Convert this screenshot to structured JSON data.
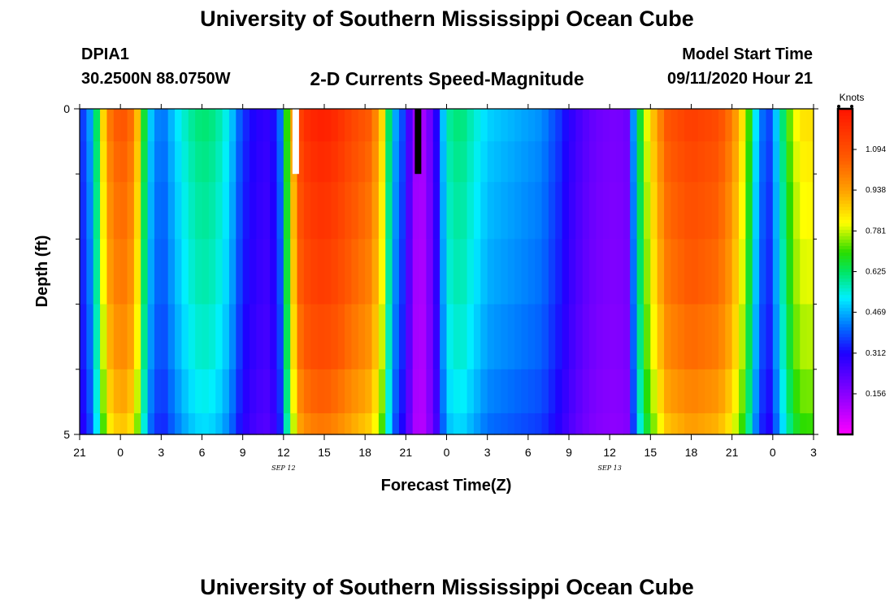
{
  "page": {
    "title_top": "University of Southern Mississippi Ocean Cube",
    "title_bottom": "University of Southern Mississippi Ocean Cube",
    "station_id": "DPIA1",
    "station_coords": "30.2500N 88.0750W",
    "model_start_label": "Model Start Time",
    "model_start_value": "09/11/2020 Hour 21"
  },
  "chart_data": {
    "type": "heatmap",
    "title": "2-D Currents Speed-Magnitude",
    "xlabel": "Forecast Time(Z)",
    "ylabel": "Depth (ft)",
    "xlim": [
      0,
      54
    ],
    "ylim": [
      0,
      5
    ],
    "x_unit": "hours since 09/11/2020 21Z",
    "y_ticks": [
      {
        "value": 0,
        "label": "0"
      },
      {
        "value": 5,
        "label": "5"
      }
    ],
    "y_minor_ticks": [
      1,
      2,
      3,
      4
    ],
    "x_ticks": [
      {
        "value": 0,
        "label": "21"
      },
      {
        "value": 3,
        "label": "0"
      },
      {
        "value": 6,
        "label": "3"
      },
      {
        "value": 9,
        "label": "6"
      },
      {
        "value": 12,
        "label": "9"
      },
      {
        "value": 15,
        "label": "12"
      },
      {
        "value": 18,
        "label": "15"
      },
      {
        "value": 21,
        "label": "18"
      },
      {
        "value": 24,
        "label": "21"
      },
      {
        "value": 27,
        "label": "0"
      },
      {
        "value": 30,
        "label": "3"
      },
      {
        "value": 33,
        "label": "6"
      },
      {
        "value": 36,
        "label": "9"
      },
      {
        "value": 39,
        "label": "12"
      },
      {
        "value": 42,
        "label": "15"
      },
      {
        "value": 45,
        "label": "18"
      },
      {
        "value": 48,
        "label": "21"
      },
      {
        "value": 51,
        "label": "0"
      },
      {
        "value": 54,
        "label": "3"
      }
    ],
    "date_labels": [
      {
        "value": 15,
        "label": "SEP 12"
      },
      {
        "value": 39,
        "label": "SEP 13"
      }
    ],
    "colorbar": {
      "unit_label": "Knots",
      "min": 0,
      "max": 1.25,
      "tick_values": [
        0.156,
        0.312,
        0.469,
        0.625,
        0.781,
        0.938,
        1.094
      ],
      "tick_labels": [
        "0.156",
        "0.312",
        "0.469",
        "0.625",
        "0.781",
        "0.938",
        "1.094"
      ]
    },
    "depth_levels": [
      0.25,
      0.75,
      1.5,
      2.5,
      3.5,
      4.5,
      4.85
    ],
    "time_step_hours": 0.5,
    "profile_factors": [
      1.0,
      0.98,
      0.96,
      0.94,
      0.91,
      0.87,
      0.83
    ],
    "surface_speed_knots": [
      [
        0,
        0.34
      ],
      [
        0.5,
        0.4
      ],
      [
        1,
        0.5
      ],
      [
        1.5,
        0.75
      ],
      [
        2,
        0.98
      ],
      [
        2.5,
        1.04
      ],
      [
        3,
        1.08
      ],
      [
        3.5,
        1.06
      ],
      [
        4,
        1.0
      ],
      [
        4.5,
        0.8
      ],
      [
        5,
        0.52
      ],
      [
        6,
        0.4
      ],
      [
        7,
        0.5
      ],
      [
        8,
        0.58
      ],
      [
        9,
        0.62
      ],
      [
        10,
        0.6
      ],
      [
        11,
        0.52
      ],
      [
        12,
        0.36
      ],
      [
        13,
        0.3
      ],
      [
        14,
        0.28
      ],
      [
        14.8,
        0.42
      ],
      [
        15.5,
        0.85
      ],
      [
        16.3,
        1.15
      ],
      [
        17,
        1.2
      ],
      [
        18,
        1.22
      ],
      [
        19,
        1.18
      ],
      [
        20,
        1.12
      ],
      [
        21.5,
        1.05
      ],
      [
        22.3,
        0.85
      ],
      [
        23,
        0.5
      ],
      [
        24,
        0.34
      ],
      [
        24.5,
        0.16
      ],
      [
        25,
        0.1
      ],
      [
        25.5,
        0.14
      ],
      [
        26.3,
        0.32
      ],
      [
        27,
        0.58
      ],
      [
        28,
        0.62
      ],
      [
        30,
        0.5
      ],
      [
        32,
        0.47
      ],
      [
        34,
        0.44
      ],
      [
        35.3,
        0.36
      ],
      [
        36,
        0.3
      ],
      [
        37,
        0.24
      ],
      [
        38,
        0.2
      ],
      [
        39.5,
        0.18
      ],
      [
        40.3,
        0.2
      ],
      [
        41,
        0.58
      ],
      [
        41.5,
        0.75
      ],
      [
        42.5,
        0.95
      ],
      [
        43.3,
        1.08
      ],
      [
        45,
        1.14
      ],
      [
        47,
        1.1
      ],
      [
        48,
        1.0
      ],
      [
        49,
        0.8
      ],
      [
        49.8,
        0.5
      ],
      [
        50.6,
        0.34
      ],
      [
        51.3,
        0.5
      ],
      [
        52,
        0.68
      ],
      [
        52.6,
        0.8
      ],
      [
        53.3,
        0.85
      ],
      [
        54,
        0.85
      ]
    ],
    "markers": [
      {
        "time": 15.9,
        "depth_from": 0,
        "depth_to": 1,
        "color": "#ffffff"
      },
      {
        "time": 24.9,
        "depth_from": 0,
        "depth_to": 1,
        "color": "#000000"
      }
    ]
  }
}
